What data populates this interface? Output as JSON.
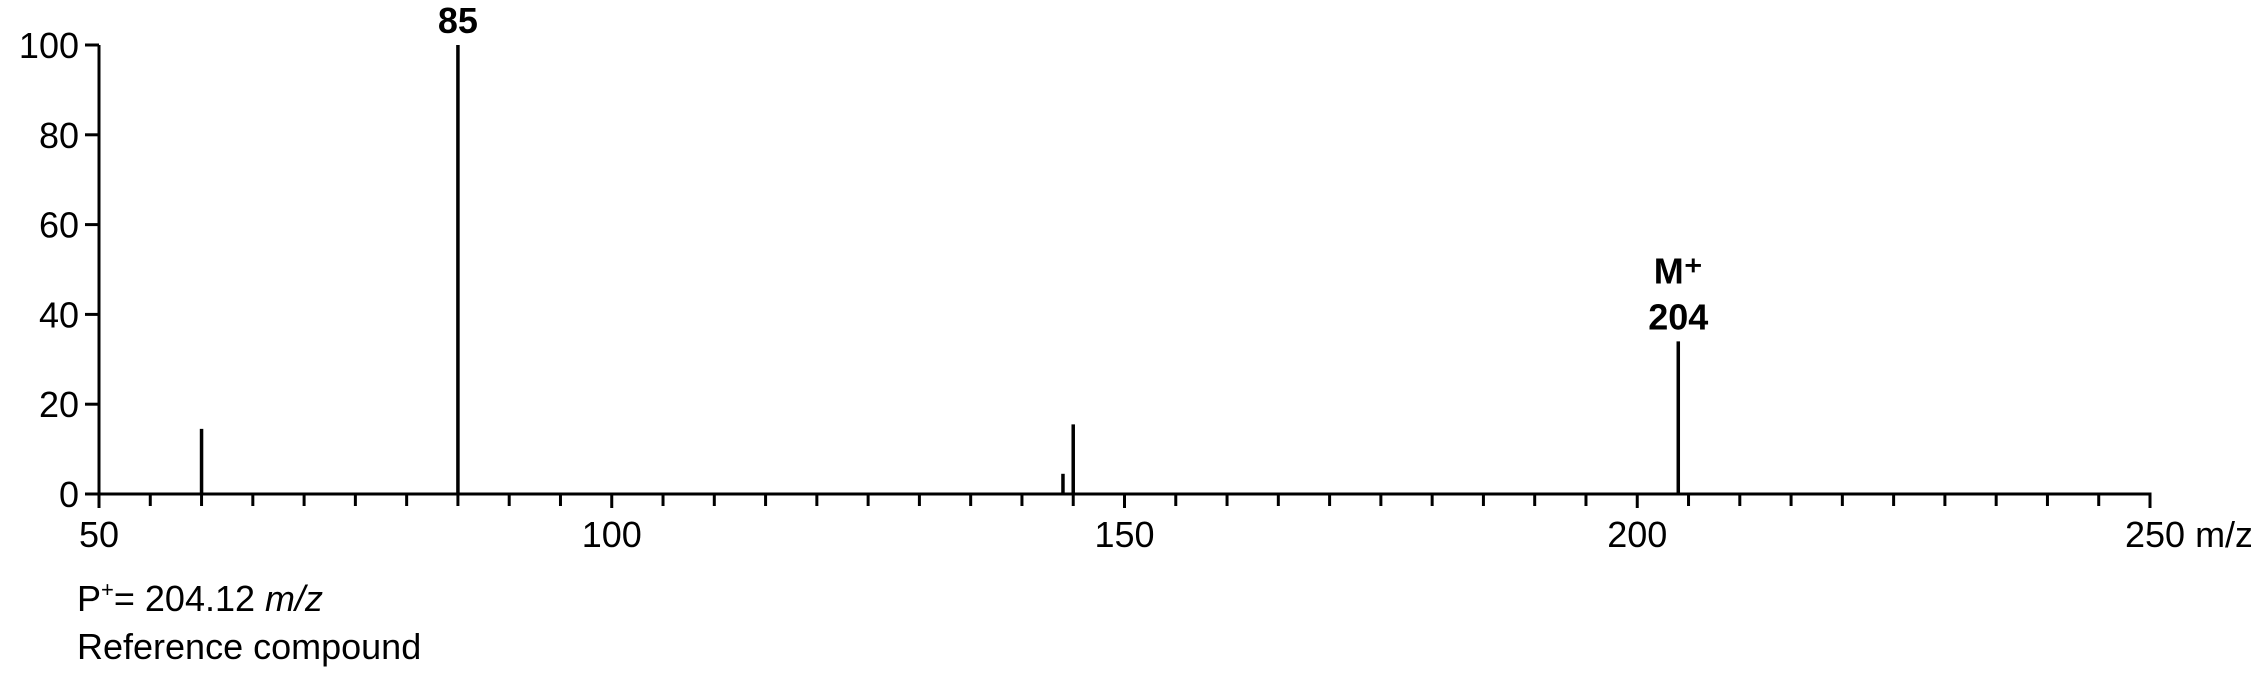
{
  "chart_data": {
    "type": "bar",
    "title": "",
    "xlabel": "m/z",
    "ylabel": "",
    "xlim": [
      50,
      250
    ],
    "ylim": [
      0,
      100
    ],
    "x_ticks": [
      50,
      100,
      150,
      200,
      250
    ],
    "x_tick_labels": [
      "50",
      "100",
      "150",
      "200",
      "250 m/z"
    ],
    "y_ticks": [
      0,
      20,
      40,
      60,
      80,
      100
    ],
    "y_tick_labels": [
      "0",
      "20",
      "40",
      "60",
      "80",
      "100"
    ],
    "x_minor_step": 5,
    "grid": false,
    "peaks": [
      {
        "mz": 60,
        "intensity": 14.5
      },
      {
        "mz": 85,
        "intensity": 100
      },
      {
        "mz": 144,
        "intensity": 4.5
      },
      {
        "mz": 145,
        "intensity": 15.5
      },
      {
        "mz": 204,
        "intensity": 34
      }
    ],
    "peak_annotations": [
      {
        "mz": 85,
        "lines": [
          "85"
        ]
      },
      {
        "mz": 204,
        "lines": [
          "M⁺",
          "204"
        ]
      }
    ]
  },
  "notes": {
    "formula_prefix": "P",
    "formula_sup": "+",
    "formula_rest": "= 204.12 ",
    "formula_unit": "m/z",
    "name": "Reference compound"
  },
  "colors": {
    "ink": "#000000",
    "background": "#ffffff"
  }
}
